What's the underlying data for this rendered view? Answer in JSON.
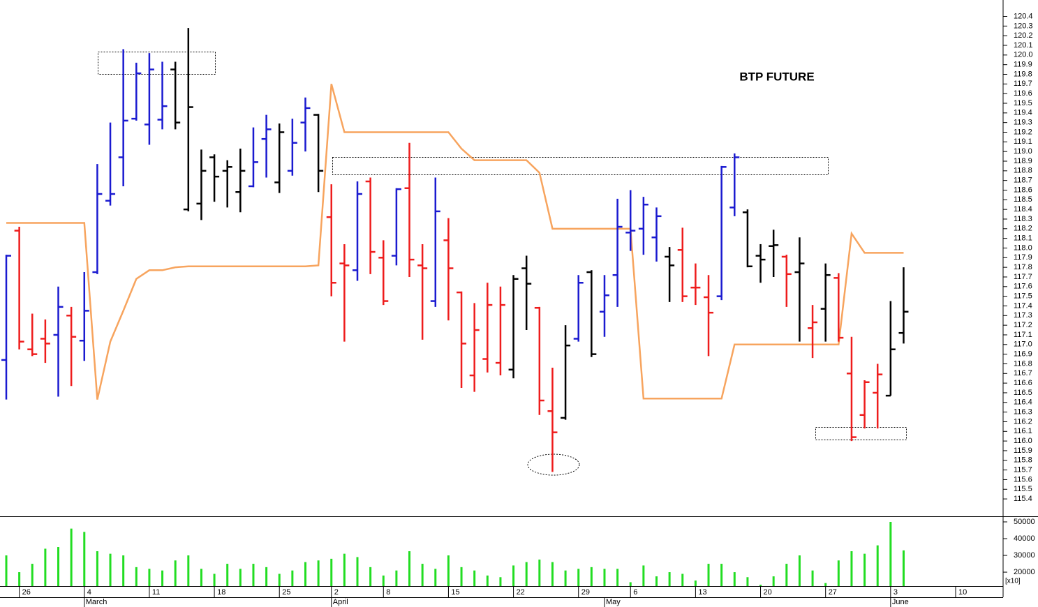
{
  "chart_data": [
    {
      "type": "ohlc",
      "title": "BTP FUTURE",
      "open": [
        116.84,
        118.18,
        116.95,
        117.06,
        117.1,
        117.3,
        117.04,
        117.75,
        118.49,
        118.94,
        119.34,
        119.28,
        119.33,
        119.85,
        118.4,
        118.46,
        118.94,
        118.8,
        118.58,
        118.64,
        119.13,
        118.68,
        118.8,
        119.3,
        119.38,
        118.32,
        117.84,
        117.77,
        118.69,
        117.9,
        117.92,
        118.62,
        117.82,
        117.45,
        118.08,
        117.54,
        116.68,
        116.85,
        116.81,
        116.74,
        117.79,
        117.38,
        116.31,
        116.24,
        117.06,
        117.75,
        117.34,
        117.72,
        118.16,
        118.2,
        118.11,
        117.91,
        117.98,
        117.59,
        117.49,
        117.5,
        118.42,
        118.37,
        117.92,
        118.02,
        117.91,
        117.75,
        117.17,
        117.37,
        117.69,
        116.7,
        116.27,
        116.5,
        116.47,
        117.12,
        null,
        null,
        null,
        null,
        null
      ],
      "high": [
        117.93,
        118.22,
        117.32,
        117.26,
        117.6,
        117.39,
        117.75,
        118.87,
        119.3,
        120.06,
        119.92,
        120.02,
        119.93,
        119.93,
        120.28,
        119.02,
        118.97,
        118.91,
        119.03,
        119.25,
        119.38,
        119.29,
        119.34,
        119.56,
        119.39,
        118.66,
        118.04,
        118.69,
        118.73,
        118.08,
        118.62,
        119.09,
        118.04,
        118.73,
        118.31,
        117.55,
        117.43,
        117.64,
        117.6,
        117.72,
        117.92,
        117.39,
        116.76,
        117.2,
        117.72,
        117.77,
        117.72,
        118.51,
        118.6,
        118.53,
        118.42,
        118.01,
        118.21,
        117.84,
        117.72,
        118.85,
        118.98,
        118.4,
        118.04,
        118.19,
        117.93,
        118.11,
        117.41,
        117.84,
        117.74,
        117.08,
        116.63,
        116.8,
        117.45,
        117.8,
        null,
        null,
        null,
        null,
        null
      ],
      "low": [
        116.43,
        116.95,
        116.88,
        116.81,
        116.46,
        116.57,
        116.83,
        117.73,
        118.44,
        118.64,
        119.32,
        119.07,
        119.23,
        119.23,
        118.38,
        118.29,
        118.48,
        118.42,
        118.37,
        118.63,
        118.73,
        118.57,
        118.75,
        119.0,
        118.58,
        117.5,
        117.03,
        117.66,
        117.73,
        117.41,
        117.82,
        117.7,
        117.05,
        117.39,
        117.25,
        116.55,
        116.51,
        116.71,
        116.68,
        116.65,
        117.15,
        116.27,
        115.68,
        116.22,
        117.03,
        116.87,
        117.08,
        117.39,
        117.97,
        117.93,
        117.86,
        117.44,
        117.44,
        117.41,
        116.88,
        117.46,
        118.33,
        117.8,
        117.64,
        117.7,
        117.39,
        117.03,
        116.86,
        117.03,
        117.03,
        116.0,
        116.13,
        116.13,
        116.47,
        117.01,
        null,
        null,
        null,
        null,
        null
      ],
      "close": [
        117.92,
        117.03,
        116.9,
        117.01,
        117.39,
        117.08,
        117.35,
        118.56,
        118.56,
        119.32,
        119.81,
        119.85,
        119.47,
        119.3,
        119.46,
        118.8,
        118.74,
        118.84,
        118.8,
        118.89,
        119.23,
        119.2,
        119.09,
        119.45,
        118.8,
        117.64,
        117.82,
        118.56,
        117.96,
        117.45,
        118.61,
        117.88,
        117.79,
        118.38,
        117.79,
        117.01,
        117.15,
        117.41,
        117.41,
        117.68,
        117.63,
        116.42,
        116.09,
        116.99,
        117.64,
        116.9,
        117.51,
        118.22,
        118.18,
        118.45,
        118.33,
        117.82,
        117.5,
        117.59,
        117.33,
        118.84,
        118.94,
        117.81,
        117.88,
        118.03,
        117.73,
        117.84,
        117.23,
        117.72,
        117.07,
        116.04,
        116.61,
        116.69,
        116.95,
        117.34,
        null,
        null,
        null,
        null,
        null
      ],
      "bar_colors": [
        "#1a1ad0",
        "#ee1c1c",
        "#ee1c1c",
        "#ee1c1c",
        "#1a1ad0",
        "#ee1c1c",
        "#1a1ad0",
        "#1a1ad0",
        "#1a1ad0",
        "#1a1ad0",
        "#1a1ad0",
        "#1a1ad0",
        "#1a1ad0",
        "#000000",
        "#000000",
        "#000000",
        "#000000",
        "#000000",
        "#000000",
        "#1a1ad0",
        "#1a1ad0",
        "#000000",
        "#1a1ad0",
        "#1a1ad0",
        "#000000",
        "#ee1c1c",
        "#ee1c1c",
        "#1a1ad0",
        "#ee1c1c",
        "#ee1c1c",
        "#1a1ad0",
        "#ee1c1c",
        "#ee1c1c",
        "#1a1ad0",
        "#ee1c1c",
        "#ee1c1c",
        "#ee1c1c",
        "#ee1c1c",
        "#ee1c1c",
        "#000000",
        "#000000",
        "#ee1c1c",
        "#ee1c1c",
        "#000000",
        "#1a1ad0",
        "#000000",
        "#1a1ad0",
        "#1a1ad0",
        "#1a1ad0",
        "#1a1ad0",
        "#1a1ad0",
        "#000000",
        "#ee1c1c",
        "#ee1c1c",
        "#ee1c1c",
        "#1a1ad0",
        "#1a1ad0",
        "#000000",
        "#000000",
        "#000000",
        "#ee1c1c",
        "#000000",
        "#ee1c1c",
        "#000000",
        "#ee1c1c",
        "#ee1c1c",
        "#ee1c1c",
        "#ee1c1c",
        "#000000",
        "#000000",
        null,
        null,
        null,
        null,
        null
      ],
      "indicator": {
        "color": "#f7a45e",
        "values": [
          118.26,
          118.26,
          118.26,
          118.26,
          118.26,
          118.26,
          118.26,
          116.43,
          117.03,
          117.35,
          117.68,
          117.77,
          117.77,
          117.8,
          117.81,
          117.81,
          117.81,
          117.81,
          117.81,
          117.81,
          117.81,
          117.81,
          117.81,
          117.81,
          117.82,
          119.7,
          119.2,
          119.2,
          119.2,
          119.2,
          119.2,
          119.2,
          119.2,
          119.2,
          119.2,
          119.03,
          118.91,
          118.91,
          118.91,
          118.91,
          118.91,
          118.78,
          118.2,
          118.2,
          118.2,
          118.2,
          118.2,
          118.2,
          118.2,
          116.44,
          116.44,
          116.44,
          116.44,
          116.44,
          116.44,
          116.44,
          117.0,
          117.0,
          117.0,
          117.0,
          117.0,
          117.0,
          117.0,
          117.0,
          117.0,
          118.15,
          117.95,
          117.95,
          117.95,
          117.95,
          null,
          null,
          null,
          null,
          null
        ]
      },
      "ylim": [
        115.22,
        120.57
      ],
      "yticks": [
        115.4,
        115.5,
        115.6,
        115.7,
        115.8,
        115.9,
        {
          "value": 116,
          "label": "116.0"
        },
        116.1,
        116.2,
        116.3,
        116.4,
        116.5,
        116.6,
        116.7,
        116.8,
        116.9,
        {
          "value": 117,
          "label": "117.0"
        },
        117.1,
        117.2,
        117.3,
        117.4,
        117.5,
        117.6,
        117.7,
        117.8,
        117.9,
        {
          "value": 118,
          "label": "118.0"
        },
        118.1,
        118.2,
        118.3,
        118.4,
        118.5,
        118.6,
        118.7,
        118.8,
        118.9,
        {
          "value": 119,
          "label": "119.0"
        },
        119.1,
        119.2,
        119.3,
        119.4,
        119.5,
        119.6,
        119.7,
        119.8,
        119.9,
        {
          "value": 120,
          "label": "120.0"
        },
        120.1,
        120.2,
        120.3,
        120.4
      ]
    },
    {
      "type": "bar",
      "color": "#22dd22",
      "values": [
        30000,
        20000,
        25000,
        34000,
        35000,
        46000,
        44000,
        32500,
        31000,
        30000,
        23000,
        22000,
        21000,
        27000,
        30000,
        22000,
        19000,
        25000,
        22000,
        25000,
        23000,
        19000,
        21000,
        26000,
        27000,
        28000,
        31000,
        29000,
        23000,
        18000,
        21000,
        32500,
        25000,
        22000,
        30000,
        23000,
        21000,
        18000,
        17000,
        24000,
        26000,
        27500,
        26000,
        21000,
        22000,
        23000,
        22000,
        22000,
        14000,
        24000,
        17500,
        20000,
        19000,
        15000,
        25000,
        25000,
        20000,
        17000,
        12500,
        17500,
        25000,
        30000,
        21000,
        13500,
        27000,
        32500,
        31000,
        36000,
        50000,
        33000,
        null,
        null,
        null,
        null,
        null
      ],
      "categories": [
        null,
        "26",
        null,
        null,
        null,
        null,
        "4",
        null,
        null,
        null,
        null,
        "11",
        null,
        null,
        null,
        null,
        "18",
        null,
        null,
        null,
        null,
        "25",
        null,
        null,
        null,
        "2",
        null,
        null,
        null,
        "8",
        null,
        null,
        null,
        null,
        "15",
        null,
        null,
        null,
        null,
        "22",
        null,
        null,
        null,
        null,
        "29",
        null,
        null,
        null,
        "6",
        null,
        null,
        null,
        null,
        "13",
        null,
        null,
        null,
        null,
        "20",
        null,
        null,
        null,
        null,
        "27",
        null,
        null,
        null,
        null,
        "3",
        null,
        null,
        null,
        null,
        "10",
        null
      ],
      "months": [
        null,
        null,
        null,
        null,
        null,
        null,
        "March",
        null,
        null,
        null,
        null,
        null,
        null,
        null,
        null,
        null,
        null,
        null,
        null,
        null,
        null,
        null,
        null,
        null,
        null,
        "April",
        null,
        null,
        null,
        null,
        null,
        null,
        null,
        null,
        null,
        null,
        null,
        null,
        null,
        null,
        null,
        null,
        null,
        null,
        null,
        null,
        "May",
        null,
        null,
        null,
        null,
        null,
        null,
        null,
        null,
        null,
        null,
        null,
        null,
        null,
        null,
        null,
        null,
        null,
        null,
        null,
        null,
        null,
        "June",
        null,
        null,
        null,
        null,
        null,
        null
      ],
      "ylim": [
        11700,
        52500
      ],
      "yticks": [
        20000,
        30000,
        40000,
        50000
      ],
      "unit_label": "[x10]"
    }
  ]
}
